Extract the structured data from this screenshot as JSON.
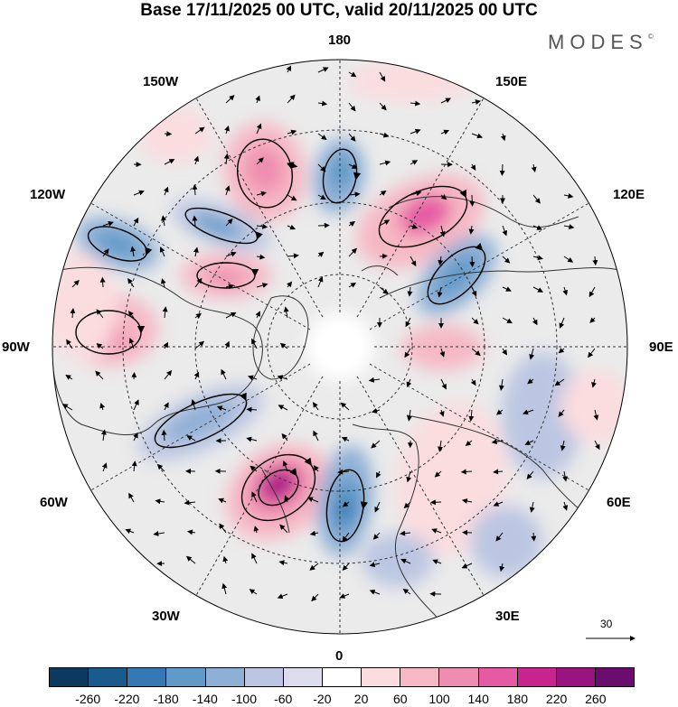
{
  "header": {
    "title": "Base 17/11/2025 00 UTC, valid 20/11/2025 00 UTC",
    "brand": "MODES",
    "brand_mark": "©"
  },
  "map": {
    "projection": "north polar stereographic",
    "longitude_labels": {
      "top": "180",
      "bottom": "0",
      "left": "90W",
      "right": "90E",
      "upper_left_1": "150W",
      "upper_left_2": "120W",
      "upper_right_1": "150E",
      "upper_right_2": "120E",
      "lower_left_1": "60W",
      "lower_left_2": "30W",
      "lower_right_1": "60E",
      "lower_right_2": "30E"
    },
    "reference_vector": {
      "value": "30"
    },
    "colors": {
      "land_outline": "#333333",
      "grid": "#333333",
      "background_neutral": "#ececec"
    }
  },
  "colorbar": {
    "ticks": [
      "-260",
      "-220",
      "-180",
      "-140",
      "-100",
      "-60",
      "-20",
      "20",
      "60",
      "100",
      "140",
      "180",
      "220",
      "260"
    ],
    "colors": [
      "#0b3a5e",
      "#1a5b8e",
      "#3479b3",
      "#5f9ac8",
      "#8fb0d6",
      "#bcc6e2",
      "#dcdcec",
      "#ffffff",
      "#fbdcdf",
      "#f6b8c4",
      "#ef8db0",
      "#e65aa3",
      "#c8238f",
      "#99147f",
      "#6a0d6e"
    ]
  }
}
